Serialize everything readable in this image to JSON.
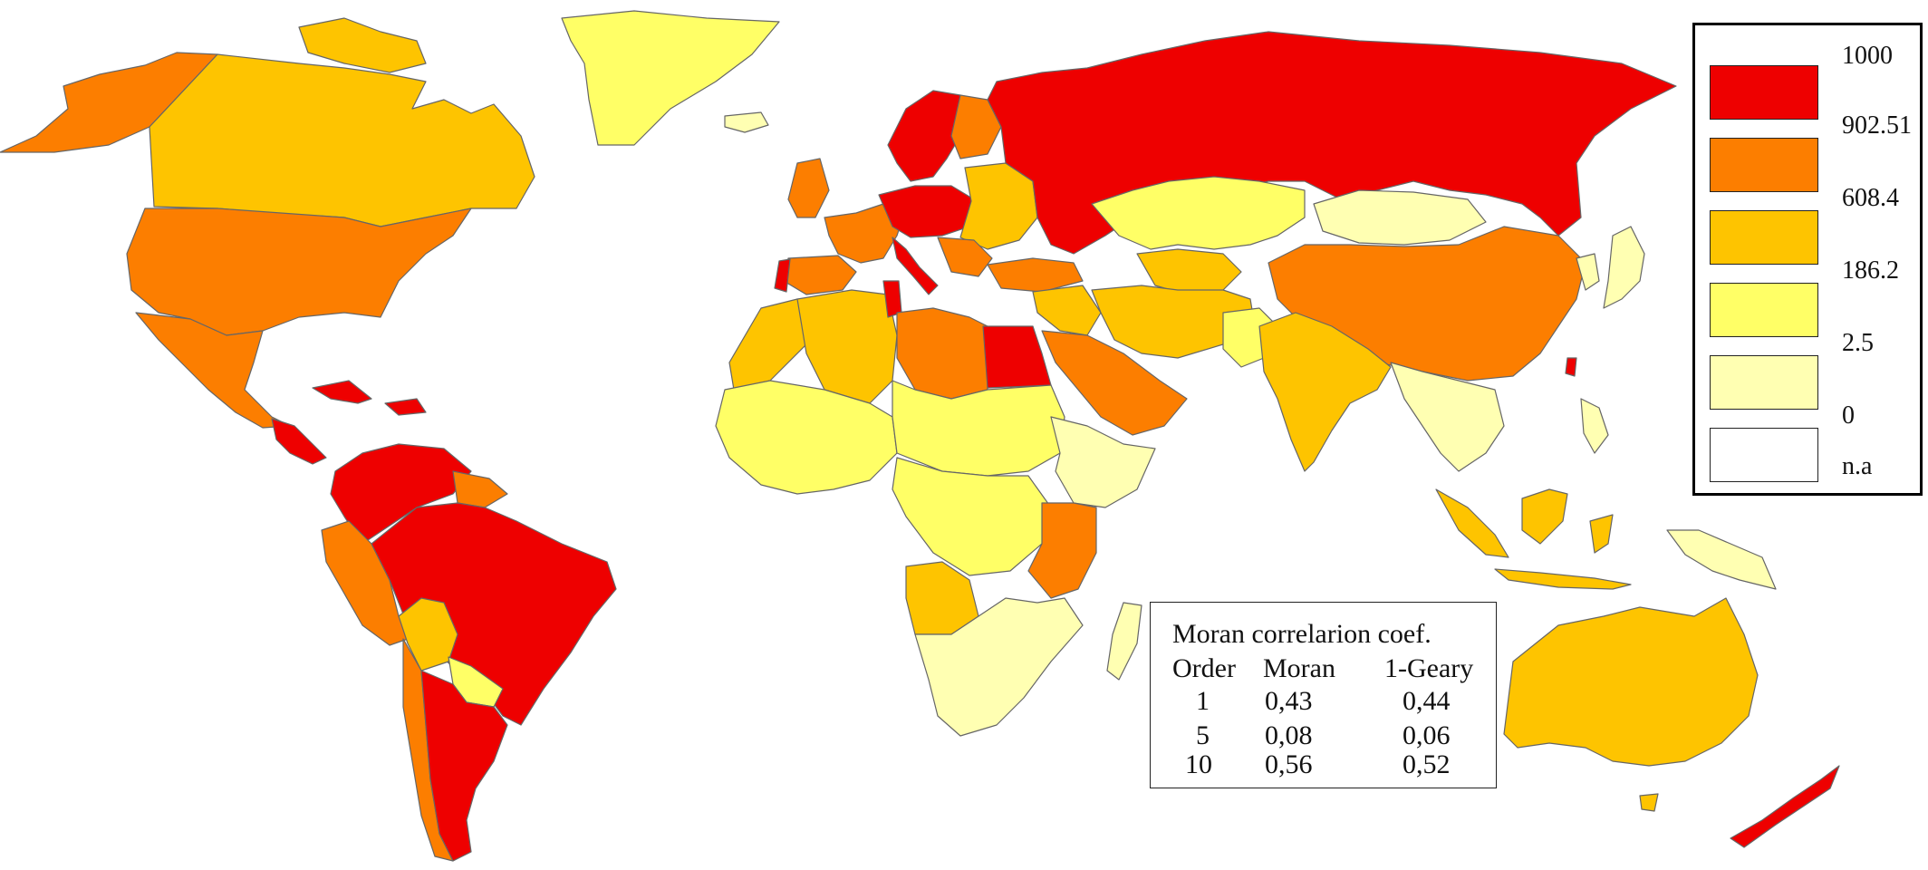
{
  "legend": {
    "breaks": [
      "1000",
      "902.51",
      "608.4",
      "186.2",
      "2.5",
      "0",
      "n.a"
    ],
    "colors": [
      "#ee0000",
      "#fc7e00",
      "#fec400",
      "#ffff66",
      "#ffffb2",
      "#ffffff"
    ],
    "classes": [
      "902.51 – 1000",
      "608.4 – 902.51",
      "186.2 – 608.4",
      "2.5 – 186.2",
      "0 – 2.5",
      "n.a"
    ]
  },
  "moran_table": {
    "title": "Moran correlarion coef.",
    "headers": [
      "Order",
      "Moran",
      "1-Geary"
    ],
    "rows": [
      {
        "order": "1",
        "moran": "0,43",
        "geary": "0,44"
      },
      {
        "order": "5",
        "moran": "0,08",
        "geary": "0,06"
      },
      {
        "order": "10",
        "moran": "0,56",
        "geary": "0,52"
      }
    ]
  },
  "regions": [
    {
      "name": "Alaska",
      "class": 1
    },
    {
      "name": "Canada",
      "class": 2
    },
    {
      "name": "Greenland",
      "class": 3
    },
    {
      "name": "Iceland",
      "class": 4
    },
    {
      "name": "United States",
      "class": 1
    },
    {
      "name": "Mexico",
      "class": 1
    },
    {
      "name": "Central America",
      "class": 0
    },
    {
      "name": "Cuba",
      "class": 0
    },
    {
      "name": "Colombia & Venezuela",
      "class": 0
    },
    {
      "name": "Guianas",
      "class": 1
    },
    {
      "name": "Ecuador",
      "class": 1
    },
    {
      "name": "Peru",
      "class": 1
    },
    {
      "name": "Brazil",
      "class": 0
    },
    {
      "name": "Bolivia",
      "class": 2
    },
    {
      "name": "Paraguay",
      "class": 3
    },
    {
      "name": "Chile",
      "class": 1
    },
    {
      "name": "Argentina",
      "class": 0
    },
    {
      "name": "Norway & Sweden",
      "class": 0
    },
    {
      "name": "Finland",
      "class": 1
    },
    {
      "name": "Western Europe",
      "class": 1
    },
    {
      "name": "Central Europe",
      "class": 0
    },
    {
      "name": "Italy",
      "class": 0
    },
    {
      "name": "Portugal",
      "class": 0
    },
    {
      "name": "Spain",
      "class": 1
    },
    {
      "name": "British Isles",
      "class": 1
    },
    {
      "name": "Eastern Europe",
      "class": 2
    },
    {
      "name": "Turkey",
      "class": 1
    },
    {
      "name": "Russia",
      "class": 0
    },
    {
      "name": "Kazakhstan",
      "class": 3
    },
    {
      "name": "Central Asia",
      "class": 2
    },
    {
      "name": "Mongolia",
      "class": 4
    },
    {
      "name": "China",
      "class": 1
    },
    {
      "name": "Japan",
      "class": 4
    },
    {
      "name": "Korea",
      "class": 4
    },
    {
      "name": "Iran & Afghanistan",
      "class": 2
    },
    {
      "name": "Pakistan",
      "class": 3
    },
    {
      "name": "India",
      "class": 2
    },
    {
      "name": "Southeast Asia",
      "class": 4
    },
    {
      "name": "Arabia",
      "class": 1
    },
    {
      "name": "Iraq & Syria",
      "class": 2
    },
    {
      "name": "Egypt",
      "class": 0
    },
    {
      "name": "Libya",
      "class": 1
    },
    {
      "name": "Algeria",
      "class": 2
    },
    {
      "name": "Morocco",
      "class": 2
    },
    {
      "name": "Tunisia",
      "class": 0
    },
    {
      "name": "West Africa",
      "class": 3
    },
    {
      "name": "Sahel",
      "class": 3
    },
    {
      "name": "Central Africa",
      "class": 3
    },
    {
      "name": "Horn of Africa",
      "class": 4
    },
    {
      "name": "East Africa",
      "class": 1
    },
    {
      "name": "Angola",
      "class": 2
    },
    {
      "name": "Southern Africa",
      "class": 4
    },
    {
      "name": "Madagascar",
      "class": 4
    },
    {
      "name": "Indonesia",
      "class": 2
    },
    {
      "name": "Philippines",
      "class": 4
    },
    {
      "name": "Papua New Guinea",
      "class": 4
    },
    {
      "name": "Australia",
      "class": 2
    },
    {
      "name": "New Zealand",
      "class": 0
    },
    {
      "name": "Taiwan",
      "class": 0
    }
  ]
}
